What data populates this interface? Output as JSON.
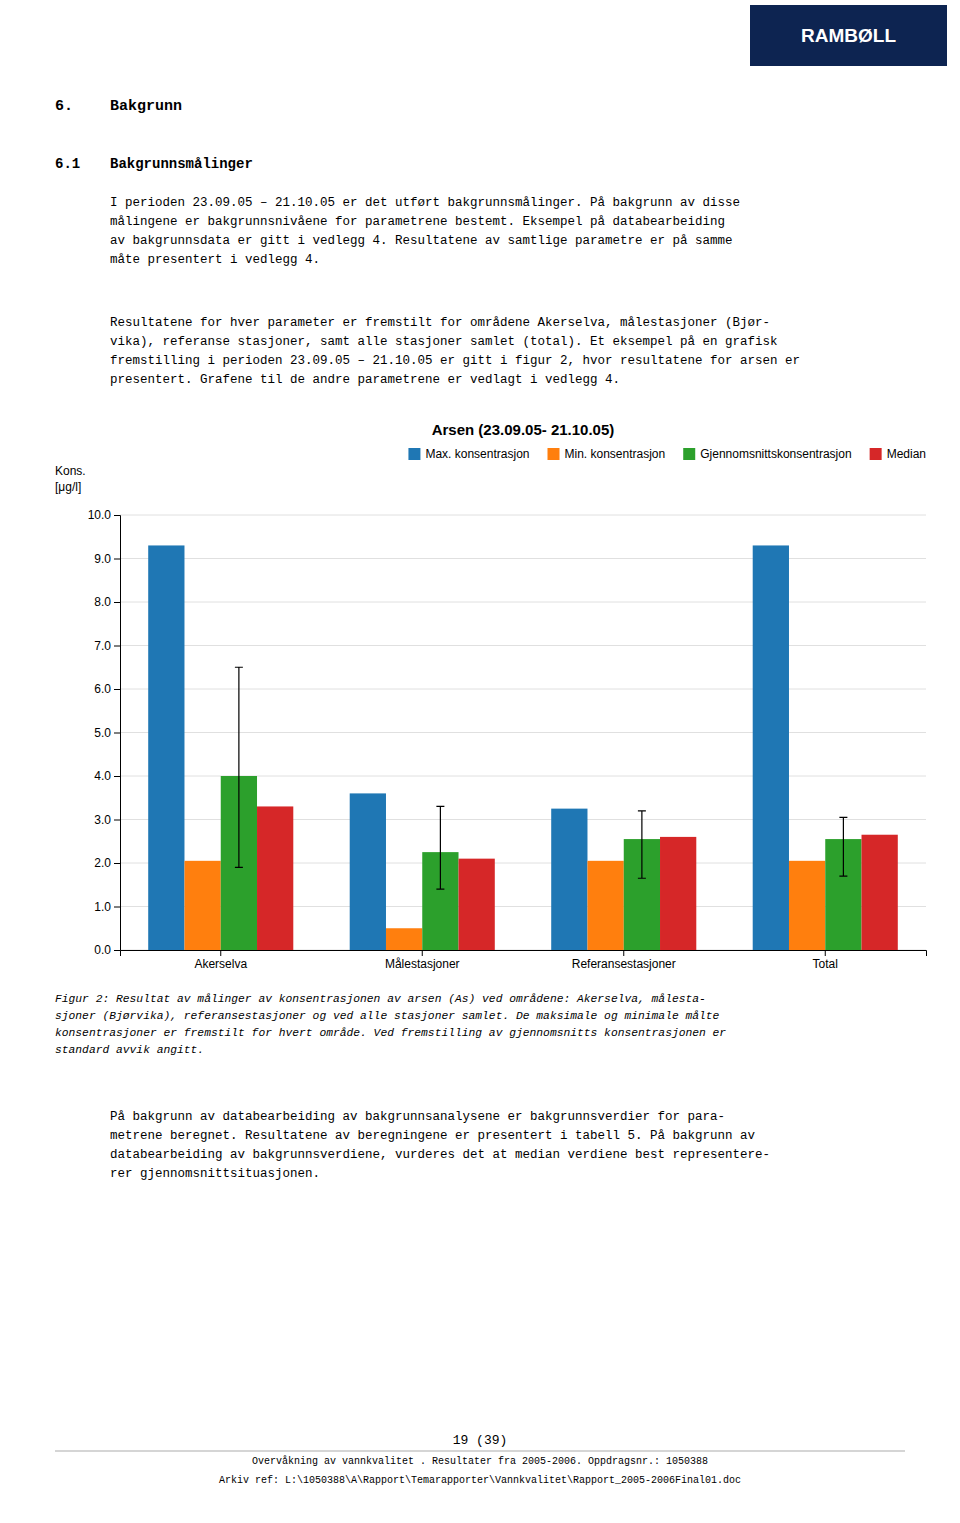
{
  "chart_data": {
    "type": "bar",
    "title": "Arsen (23.09.05- 21.10.05)",
    "ylabel": [
      "Kons.",
      "[μg/l]"
    ],
    "categories": [
      "Akerselva",
      "Målestasjoner",
      "Referansestasjoner",
      "Total"
    ],
    "series": [
      {
        "name": "Max. konsentrasjon",
        "values": [
          9.3,
          3.6,
          3.25,
          9.3
        ]
      },
      {
        "name": "Min. konsentrasjon",
        "values": [
          2.05,
          0.5,
          2.05,
          2.05
        ]
      },
      {
        "name": "Gjennomsnittskonsentrasjon",
        "values": [
          4.0,
          2.25,
          2.55,
          2.55
        ],
        "error_lower": [
          2.1,
          0.85,
          0.9,
          0.85
        ],
        "error_upper": [
          2.5,
          1.05,
          0.65,
          0.5
        ]
      },
      {
        "name": "Median",
        "values": [
          3.3,
          2.1,
          2.6,
          2.65
        ]
      }
    ],
    "ylim": [
      0,
      10
    ],
    "yticks": [
      {
        "value": 0,
        "label": "0.0"
      },
      {
        "value": 1,
        "label": "1.0"
      },
      {
        "value": 2,
        "label": "2.0"
      },
      {
        "value": 3,
        "label": "3.0"
      },
      {
        "value": 4,
        "label": "4.0"
      },
      {
        "value": 5,
        "label": "5.0"
      },
      {
        "value": 6,
        "label": "6.0"
      },
      {
        "value": 7,
        "label": "7.0"
      },
      {
        "value": 8,
        "label": "8.0"
      },
      {
        "value": 9,
        "label": "9.0"
      },
      {
        "value": 10,
        "label": "10.0"
      }
    ],
    "grid": true,
    "legend": "top-right"
  },
  "page": {
    "logo": {
      "text": "RAMBØLL",
      "color": "#0D2451"
    },
    "heading1": {
      "number": "6.",
      "text": "Bakgrunn"
    },
    "heading2": {
      "number": "6.1",
      "text": "Bakgrunnsmålinger"
    },
    "para1": "I perioden 23.09.05 – 21.10.05 er det utført bakgrunnsmålinger. På bakgrunn av disse\nmålingene er bakgrunnsnivåene for parametrene bestemt. Eksempel på databearbeiding\nav bakgrunnsdata er gitt i vedlegg 4. Resultatene av samtlige parametre er på samme\nmåte presentert i vedlegg 4.",
    "para2": "Resultatene for hver parameter er fremstilt for områdene Akerselva, målestasjoner (Bjør-\nvika), referanse stasjoner, samt alle stasjoner samlet (total).  Et eksempel på en grafisk\nfremstilling i perioden 23.09.05 – 21.10.05 er gitt i figur 2, hvor resultatene for arsen er\npresentert. Grafene til de andre parametrene er vedlagt i vedlegg 4.",
    "caption": "Figur 2:  Resultat av målinger av konsentrasjonen av arsen (As) ved områdene: Akerselva, målesta-\nsjoner (Bjørvika), referansestasjoner og ved alle stasjoner samlet. De maksimale og minimale målte\nkonsentrasjoner er fremstilt for hvert område. Ved fremstilling av gjennomsnitts konsentrasjonen er\nstandard avvik angitt.",
    "para3": "På bakgrunn av databearbeiding av bakgrunnsanalysene er bakgrunnsverdier for para-\nmetrene beregnet. Resultatene av beregningene er presentert i tabell 5. På bakgrunn av\ndatabearbeiding av bakgrunnsverdiene, vurderes det at median verdiene best representere-\nrer gjennomsnittsituasjonen.",
    "page_number": "19 (39)",
    "footer": [
      "Overvåkning av vannkvalitet . Resultater fra 2005-2006.  Oppdragsnr.: 1050388",
      "Arkiv ref: L:\\1050388\\A\\Rapport\\Temarapporter\\Vannkvalitet\\Rapport_2005-2006Final01.doc"
    ]
  }
}
